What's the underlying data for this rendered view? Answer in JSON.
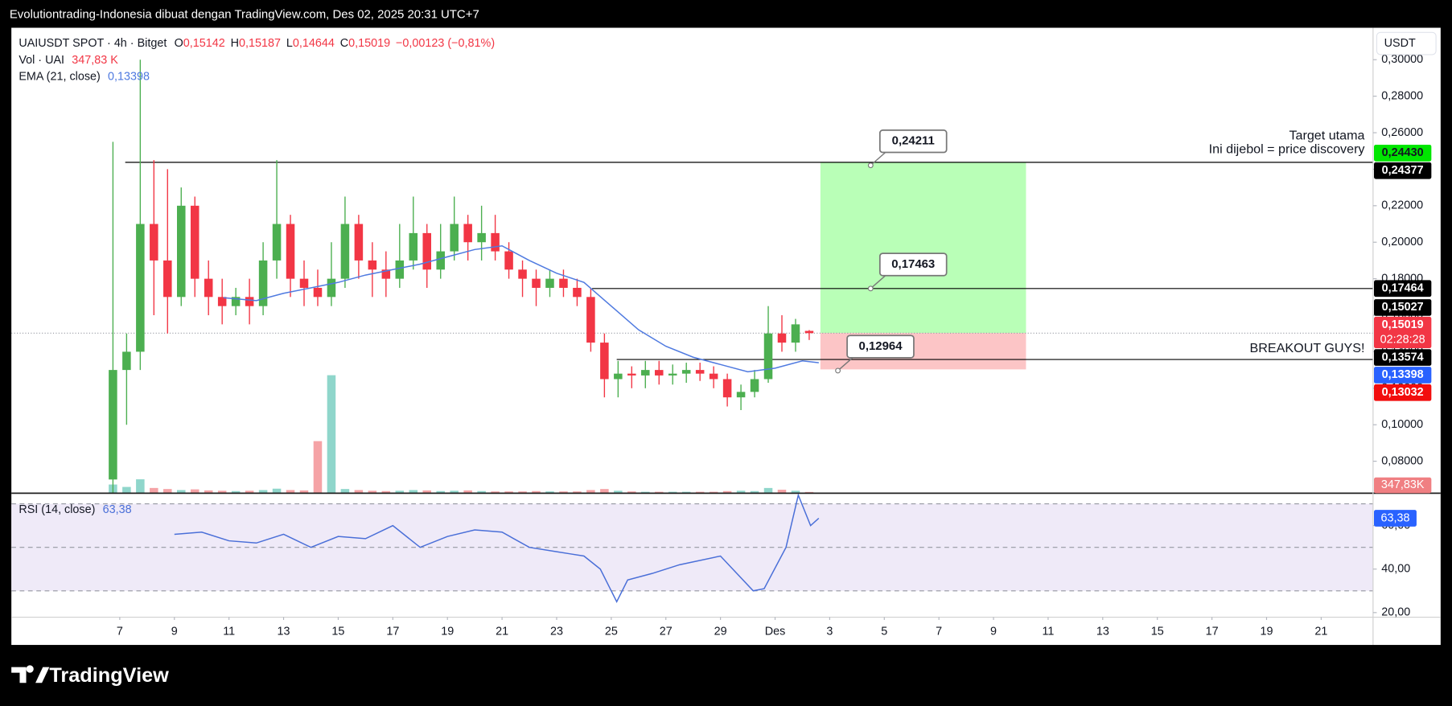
{
  "header": {
    "text": "Evolutiontrading-Indonesia dibuat dengan TradingView.com, Des 02, 2025 20:31 UTC+7"
  },
  "footer": {
    "logo": "TradingView"
  },
  "chart_data": {
    "type": "candlestick",
    "symbol": "UAIUSDT SPOT · 4h · Bitget",
    "ohlc_legend": [
      {
        "key": "O",
        "value": "0,15142"
      },
      {
        "key": "H",
        "value": "0,15187"
      },
      {
        "key": "L",
        "value": "0,14644"
      },
      {
        "key": "C",
        "value": "0,15019"
      }
    ],
    "change": "−0,00123 (−0,81%)",
    "volume_legend": "Vol · UAI",
    "volume_value": "347,83 K",
    "ema_legend": "EMA (21, close)",
    "ema_value": "0,13398",
    "currency": "USDT",
    "up_color": "#4caf50",
    "down_color": "#f23645",
    "volume_colors": [
      "#8fd6cb",
      "#f5a3a6"
    ],
    "xlim": [
      -3.97,
      45.9
    ],
    "xticks": [
      {
        "value": 0,
        "label": "7"
      },
      {
        "value": 2,
        "label": "9"
      },
      {
        "value": 4,
        "label": "11"
      },
      {
        "value": 6,
        "label": "13"
      },
      {
        "value": 8,
        "label": "15"
      },
      {
        "value": 10,
        "label": "17"
      },
      {
        "value": 12,
        "label": "19"
      },
      {
        "value": 14,
        "label": "21"
      },
      {
        "value": 16,
        "label": "23"
      },
      {
        "value": 18,
        "label": "25"
      },
      {
        "value": 20,
        "label": "27"
      },
      {
        "value": 22,
        "label": "29"
      },
      {
        "value": 24,
        "label": "Des"
      },
      {
        "value": 26,
        "label": "3"
      },
      {
        "value": 28,
        "label": "5"
      },
      {
        "value": 30,
        "label": "7"
      },
      {
        "value": 32,
        "label": "9"
      },
      {
        "value": 34,
        "label": "11"
      },
      {
        "value": 36,
        "label": "13"
      },
      {
        "value": 38,
        "label": "15"
      },
      {
        "value": 40,
        "label": "17"
      },
      {
        "value": 42,
        "label": "19"
      },
      {
        "value": 44,
        "label": "21"
      }
    ],
    "ylim": [
      0.0625,
      0.3175
    ],
    "yticks": [
      {
        "value": 0.08,
        "label": "0,08000"
      },
      {
        "value": 0.1,
        "label": "0,10000"
      },
      {
        "value": 0.12,
        "label": "0,12000"
      },
      {
        "value": 0.14,
        "label": "0,14000"
      },
      {
        "value": 0.16,
        "label": "0,16000"
      },
      {
        "value": 0.18,
        "label": "0,18000"
      },
      {
        "value": 0.2,
        "label": "0,20000"
      },
      {
        "value": 0.22,
        "label": "0,22000"
      },
      {
        "value": 0.24,
        "label": "0,24000"
      },
      {
        "value": 0.26,
        "label": "0,26000"
      },
      {
        "value": 0.28,
        "label": "0,28000"
      },
      {
        "value": 0.3,
        "label": "0,30000"
      }
    ],
    "volume_lim": [
      0,
      40000
    ],
    "candles": {
      "x": [
        -0.25,
        0.25,
        0.75,
        1.25,
        1.75,
        2.25,
        2.75,
        3.25,
        3.75,
        4.25,
        4.75,
        5.25,
        5.75,
        6.25,
        6.75,
        7.25,
        7.75,
        8.25,
        8.75,
        9.25,
        9.75,
        10.25,
        10.75,
        11.25,
        11.75,
        12.25,
        12.75,
        13.25,
        13.75,
        14.25,
        14.75,
        15.25,
        15.75,
        16.25,
        16.75,
        17.25,
        17.75,
        18.25,
        18.75,
        19.25,
        19.75,
        20.25,
        20.75,
        21.25,
        21.75,
        22.25,
        22.75,
        23.25,
        23.75,
        24.25,
        24.75,
        25.25
      ],
      "open": [
        0.07,
        0.13,
        0.14,
        0.21,
        0.19,
        0.17,
        0.22,
        0.18,
        0.17,
        0.165,
        0.17,
        0.165,
        0.19,
        0.21,
        0.18,
        0.175,
        0.17,
        0.18,
        0.21,
        0.19,
        0.185,
        0.18,
        0.19,
        0.205,
        0.185,
        0.195,
        0.21,
        0.2,
        0.205,
        0.195,
        0.185,
        0.18,
        0.175,
        0.18,
        0.175,
        0.17,
        0.145,
        0.125,
        0.128,
        0.127,
        0.13,
        0.127,
        0.128,
        0.13,
        0.128,
        0.125,
        0.115,
        0.118,
        0.125,
        0.15,
        0.145,
        0.15142
      ],
      "high": [
        0.255,
        0.15,
        0.3,
        0.245,
        0.24,
        0.23,
        0.225,
        0.19,
        0.18,
        0.175,
        0.18,
        0.2,
        0.245,
        0.215,
        0.19,
        0.185,
        0.2,
        0.225,
        0.215,
        0.2,
        0.195,
        0.21,
        0.225,
        0.21,
        0.21,
        0.225,
        0.215,
        0.22,
        0.215,
        0.2,
        0.19,
        0.185,
        0.185,
        0.185,
        0.18,
        0.175,
        0.15,
        0.135,
        0.132,
        0.135,
        0.135,
        0.133,
        0.134,
        0.134,
        0.132,
        0.128,
        0.122,
        0.13,
        0.165,
        0.16,
        0.158,
        0.15187
      ],
      "low": [
        0.06,
        0.1,
        0.13,
        0.16,
        0.15,
        0.165,
        0.17,
        0.16,
        0.155,
        0.16,
        0.155,
        0.16,
        0.18,
        0.17,
        0.165,
        0.165,
        0.165,
        0.175,
        0.18,
        0.17,
        0.17,
        0.175,
        0.185,
        0.175,
        0.18,
        0.19,
        0.19,
        0.19,
        0.19,
        0.18,
        0.17,
        0.165,
        0.17,
        0.17,
        0.165,
        0.14,
        0.115,
        0.115,
        0.12,
        0.12,
        0.122,
        0.122,
        0.123,
        0.124,
        0.12,
        0.11,
        0.108,
        0.115,
        0.123,
        0.14,
        0.14,
        0.14644
      ],
      "close": [
        0.13,
        0.14,
        0.21,
        0.19,
        0.17,
        0.22,
        0.18,
        0.17,
        0.165,
        0.17,
        0.165,
        0.19,
        0.21,
        0.18,
        0.175,
        0.17,
        0.18,
        0.21,
        0.19,
        0.185,
        0.18,
        0.19,
        0.205,
        0.185,
        0.195,
        0.21,
        0.2,
        0.205,
        0.195,
        0.185,
        0.18,
        0.175,
        0.18,
        0.175,
        0.17,
        0.145,
        0.125,
        0.128,
        0.127,
        0.13,
        0.127,
        0.128,
        0.13,
        0.128,
        0.125,
        0.115,
        0.118,
        0.125,
        0.15,
        0.145,
        0.155,
        0.15019
      ],
      "volume": [
        2500,
        1800,
        4000,
        1500,
        1200,
        900,
        1100,
        800,
        700,
        600,
        700,
        900,
        1300,
        900,
        800,
        15000,
        34000,
        1200,
        900,
        700,
        600,
        700,
        900,
        800,
        600,
        700,
        800,
        600,
        500,
        500,
        500,
        600,
        500,
        500,
        500,
        900,
        1200,
        700,
        500,
        400,
        400,
        400,
        400,
        400,
        400,
        600,
        700,
        600,
        1500,
        1000,
        700,
        347.83
      ]
    },
    "ema": {
      "color": "#4f7ae0",
      "x": [
        3.8,
        5,
        6,
        7,
        8,
        9,
        10,
        11,
        12,
        13,
        14,
        15,
        16,
        17,
        18,
        19,
        20,
        21,
        22,
        23,
        24,
        25,
        25.6
      ],
      "values": [
        0.1696,
        0.168,
        0.172,
        0.175,
        0.178,
        0.182,
        0.185,
        0.188,
        0.192,
        0.196,
        0.198,
        0.19,
        0.183,
        0.178,
        0.165,
        0.152,
        0.143,
        0.137,
        0.133,
        0.129,
        0.131,
        0.135,
        0.13398
      ]
    },
    "levels": [
      {
        "value": 0.24377,
        "x_start": 0.2
      },
      {
        "value": 0.17464,
        "x_start": 17.3
      },
      {
        "value": 0.13574,
        "x_start": 18.2
      }
    ],
    "position": {
      "x_start": 25.66,
      "x_end": 33.19,
      "target": 0.24377,
      "entry": 0.15027,
      "stop": 0.13032,
      "profit_color": "#b9ffb7",
      "loss_color": "#fcc5c6"
    },
    "callouts": [
      {
        "value": 0.24211,
        "label": "0,24211",
        "x": 27.5
      },
      {
        "value": 0.17463,
        "label": "0,17463",
        "x": 27.5
      },
      {
        "value": 0.12964,
        "label": "0,12964",
        "x": 26.3
      }
    ],
    "annotations": [
      "Target utama",
      "Ini dijebol = price discovery",
      "BREAKOUT GUYS!"
    ],
    "last_price": {
      "value": 0.15019,
      "label": "0,15019",
      "countdown": "02:28:28",
      "color": "#f23645"
    },
    "price_labels": [
      {
        "value": 0.2443,
        "label": "0,24430",
        "color": "#00e600",
        "text_color": "#131722"
      },
      {
        "value": 0.24377,
        "label": "0,24377",
        "color": "#000000",
        "text_color": "#ffffff"
      },
      {
        "value": 0.17464,
        "label": "0,17464",
        "color": "#000000",
        "text_color": "#ffffff"
      },
      {
        "value": 0.15027,
        "label": "0,15027",
        "color": "#000000",
        "text_color": "#ffffff"
      },
      {
        "value": 0.13574,
        "label": "0,13574",
        "color": "#000000",
        "text_color": "#ffffff"
      },
      {
        "value": 0.13398,
        "label": "0,13398",
        "color": "#2962ff",
        "text_color": "#ffffff"
      },
      {
        "value": 0.13032,
        "label": "0,13032",
        "color": "#f20d0d",
        "text_color": "#ffffff"
      }
    ],
    "volume_label": {
      "value": 347.83,
      "label": "347,83K",
      "color": "#f07f82"
    },
    "rsi": {
      "legend": "RSI (14, close)",
      "last": {
        "value": 63.38,
        "label": "63,38"
      },
      "color": "#4a6fd8",
      "ylim": [
        17.9,
        74.9
      ],
      "yticks": [
        {
          "value": 20,
          "label": "20,00"
        },
        {
          "value": 40,
          "label": "40,00"
        },
        {
          "value": 60,
          "label": "60,00"
        }
      ],
      "bands": [
        70,
        50,
        30
      ],
      "band_color": "#efeaf8",
      "x": [
        2,
        3,
        4,
        5,
        6,
        7,
        8,
        9,
        10,
        11,
        12,
        13,
        14,
        15,
        16,
        16.5,
        17,
        17.6,
        18,
        18.2,
        18.6,
        19.5,
        20.5,
        22,
        23.2,
        23.6,
        24.4,
        24.85,
        25.3,
        25.6
      ],
      "values": [
        56,
        57,
        53,
        52,
        56,
        50,
        55,
        54,
        60,
        50,
        55,
        58,
        57,
        50,
        48,
        47,
        46,
        40,
        30,
        25,
        35,
        38,
        42,
        46,
        30,
        31,
        50,
        74,
        60,
        63.38
      ]
    }
  }
}
